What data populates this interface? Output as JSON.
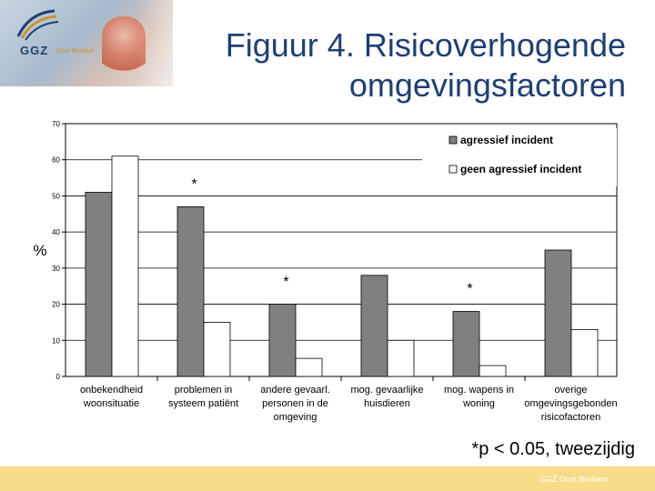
{
  "header": {
    "title_line1": "Figuur 4. Risicoverhogende",
    "title_line2": "omgevingsfactoren",
    "logo_text": "GGZ",
    "logo_sub": "Oost Brabant"
  },
  "chart_data": {
    "type": "bar",
    "ylabel": "%",
    "ylim": [
      0,
      70
    ],
    "yticks": [
      0,
      10,
      20,
      30,
      40,
      50,
      60,
      70
    ],
    "categories": [
      [
        "onbekendheid",
        "woonsituatie"
      ],
      [
        "problemen in",
        "systeem patiënt"
      ],
      [
        "andere gevaarl.",
        "personen in de",
        "omgeving"
      ],
      [
        "mog. gevaarlijke",
        "huisdieren"
      ],
      [
        "mog. wapens in",
        "woning"
      ],
      [
        "overige",
        "omgevingsgebonden",
        "risicofactoren"
      ]
    ],
    "series": [
      {
        "name": "agressief incident",
        "color": "#808080",
        "values": [
          51,
          47,
          20,
          28,
          18,
          35
        ]
      },
      {
        "name": "geen agressief incident",
        "color": "#ffffff",
        "values": [
          61,
          15,
          5,
          10,
          3,
          13
        ]
      }
    ],
    "annotations": [
      {
        "category": 1,
        "y": 55,
        "text": "*"
      },
      {
        "category": 2,
        "y": 28,
        "text": "*"
      },
      {
        "category": 4,
        "y": 26,
        "text": "*"
      }
    ],
    "grid": true,
    "legend": "top-right"
  },
  "footnote": "*p < 0.05, tweezijdig",
  "footer": {
    "text": "GGZ Oost Brabant",
    "color": "#f8dc8a"
  }
}
